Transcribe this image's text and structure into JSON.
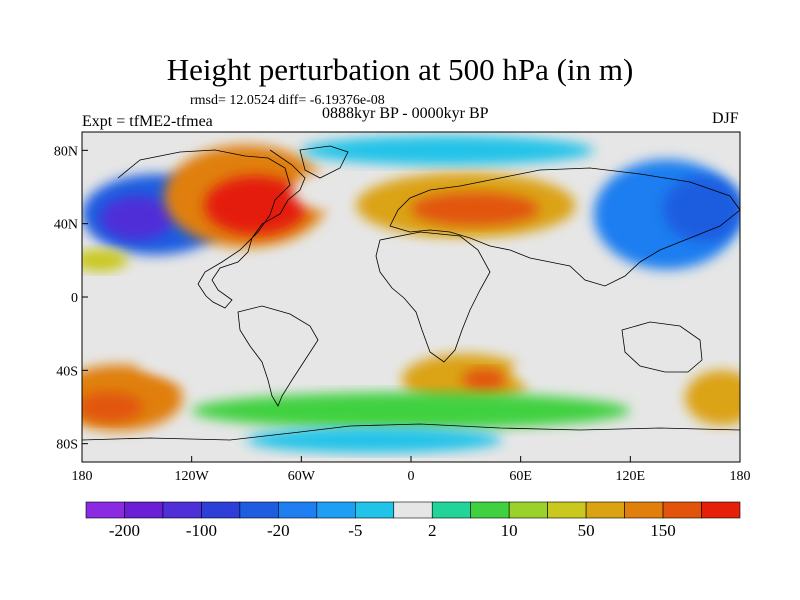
{
  "title": "Height perturbation at 500 hPa (in m)",
  "stats": "rmsd= 12.0524 diff= -6.19376e-08",
  "period": "0888kyr BP - 0000kyr BP",
  "experiment": "Expt = tfME2-tfmea",
  "season": "DJF",
  "map": {
    "projection": "cylindrical-equidistant",
    "lon_range": [
      -180,
      180
    ],
    "lat_range": [
      -90,
      90
    ],
    "lon_ticks": [
      {
        "value": -180,
        "label": "180"
      },
      {
        "value": -120,
        "label": "120W"
      },
      {
        "value": -60,
        "label": "60W"
      },
      {
        "value": 0,
        "label": "0"
      },
      {
        "value": 60,
        "label": "60E"
      },
      {
        "value": 120,
        "label": "120E"
      },
      {
        "value": 180,
        "label": "180"
      }
    ],
    "lat_ticks": [
      {
        "value": 80,
        "label": "80N"
      },
      {
        "value": 40,
        "label": "40N"
      },
      {
        "value": 0,
        "label": "0"
      },
      {
        "value": -40,
        "label": "40S"
      },
      {
        "value": -80,
        "label": "80S"
      }
    ],
    "field_regions": [
      {
        "name": "region-nw-pacific-high",
        "lon": -140,
        "lat": 45,
        "rlon": 40,
        "rlat": 22,
        "level": 4
      },
      {
        "name": "region-nw-pacific-core",
        "lon": -150,
        "lat": 43,
        "rlon": 20,
        "rlat": 12,
        "level": 2
      },
      {
        "name": "region-north-america-high",
        "lon": -90,
        "lat": 55,
        "rlon": 45,
        "rlat": 28,
        "level": 14
      },
      {
        "name": "region-north-america-core",
        "lon": -85,
        "lat": 50,
        "rlon": 28,
        "rlat": 16,
        "level": 16
      },
      {
        "name": "region-north-atlantic-low",
        "lon": -40,
        "lat": 58,
        "rlon": 25,
        "rlat": 12,
        "level": 8
      },
      {
        "name": "region-europe-high",
        "lon": 30,
        "lat": 50,
        "rlon": 60,
        "rlat": 18,
        "level": 13
      },
      {
        "name": "region-europe-core",
        "lon": 35,
        "lat": 48,
        "rlon": 35,
        "rlat": 9,
        "level": 15
      },
      {
        "name": "region-asia-low",
        "lon": 140,
        "lat": 45,
        "rlon": 40,
        "rlat": 30,
        "level": 5
      },
      {
        "name": "region-asia-core",
        "lon": 160,
        "lat": 48,
        "rlon": 22,
        "rlat": 18,
        "level": 4
      },
      {
        "name": "region-arctic-low",
        "lon": 20,
        "lat": 80,
        "rlon": 80,
        "rlat": 8,
        "level": 7
      },
      {
        "name": "region-subtropic-pacific",
        "lon": -170,
        "lat": 20,
        "rlon": 15,
        "rlat": 6,
        "level": 12
      },
      {
        "name": "region-tropical-band-n",
        "lon": 30,
        "lat": 20,
        "rlon": 60,
        "rlat": 8,
        "level": 8
      },
      {
        "name": "region-south-pacific-high",
        "lon": -160,
        "lat": -55,
        "rlon": 35,
        "rlat": 18,
        "level": 14
      },
      {
        "name": "region-south-pacific-core",
        "lon": -165,
        "lat": -60,
        "rlon": 18,
        "rlat": 8,
        "level": 15
      },
      {
        "name": "region-south-america-low",
        "lon": -110,
        "lat": -35,
        "rlon": 40,
        "rlat": 10,
        "level": 8
      },
      {
        "name": "region-south-atlantic-high",
        "lon": 30,
        "lat": -45,
        "rlon": 35,
        "rlat": 14,
        "level": 13
      },
      {
        "name": "region-south-atlantic-core",
        "lon": 40,
        "lat": -45,
        "rlon": 12,
        "rlat": 6,
        "level": 15
      },
      {
        "name": "region-indian-ocean-low",
        "lon": 100,
        "lat": -40,
        "rlon": 45,
        "rlat": 14,
        "level": 8
      },
      {
        "name": "region-southern-ocean-band",
        "lon": 0,
        "lat": -62,
        "rlon": 120,
        "rlat": 10,
        "level": 10
      },
      {
        "name": "region-antarctic-low",
        "lon": -20,
        "lat": -78,
        "rlon": 70,
        "rlat": 7,
        "level": 7
      },
      {
        "name": "region-se-pacific-high",
        "lon": 170,
        "lat": -55,
        "rlon": 20,
        "rlat": 15,
        "level": 13
      }
    ],
    "coastline_labels": []
  },
  "colorbar": {
    "colors": [
      "#8a2be2",
      "#6a1fd6",
      "#4f2fd8",
      "#2d3fd6",
      "#1f5de0",
      "#1f7ef0",
      "#1e9ef5",
      "#22c3e8",
      "#e6e6e6",
      "#22d39a",
      "#3fd13f",
      "#9ad12b",
      "#c9c81e",
      "#dba312",
      "#e07f0c",
      "#e2540a",
      "#e41f0a"
    ],
    "labels": [
      {
        "text": "-200",
        "boundary": 1
      },
      {
        "text": "-100",
        "boundary": 3
      },
      {
        "text": "-20",
        "boundary": 5
      },
      {
        "text": "-5",
        "boundary": 7
      },
      {
        "text": "2",
        "boundary": 9
      },
      {
        "text": "10",
        "boundary": 11
      },
      {
        "text": "50",
        "boundary": 13
      },
      {
        "text": "150",
        "boundary": 15
      }
    ]
  }
}
